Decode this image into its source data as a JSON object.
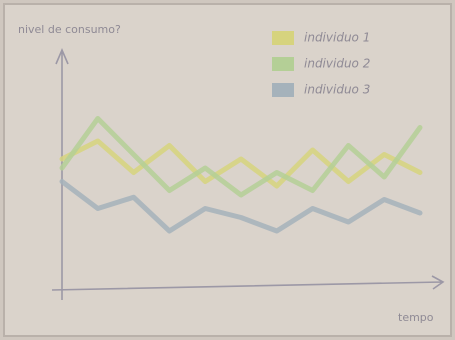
{
  "chart_data": {
    "type": "line",
    "y_label": "nivel de consumo?",
    "x_label": "tempo",
    "x": [
      0,
      1,
      2,
      3,
      4,
      5,
      6,
      7,
      8,
      9,
      10
    ],
    "xlim": [
      0,
      10
    ],
    "ylim": [
      0,
      10
    ],
    "legend": "upper right",
    "series": [
      {
        "name": "individuo 1",
        "color": "#d6d37e",
        "values": [
          5.6,
          6.4,
          5.0,
          6.2,
          4.6,
          5.6,
          4.4,
          6.0,
          4.6,
          5.8,
          5.0
        ]
      },
      {
        "name": "individuo 2",
        "color": "#b4cf96",
        "values": [
          5.2,
          7.4,
          5.8,
          4.2,
          5.2,
          4.0,
          5.0,
          4.2,
          6.2,
          4.8,
          7.0
        ]
      },
      {
        "name": "individuo 3",
        "color": "#a5b2bb",
        "values": [
          4.6,
          3.4,
          3.9,
          2.4,
          3.4,
          3.0,
          2.4,
          3.4,
          2.8,
          3.8,
          3.2
        ]
      }
    ]
  }
}
